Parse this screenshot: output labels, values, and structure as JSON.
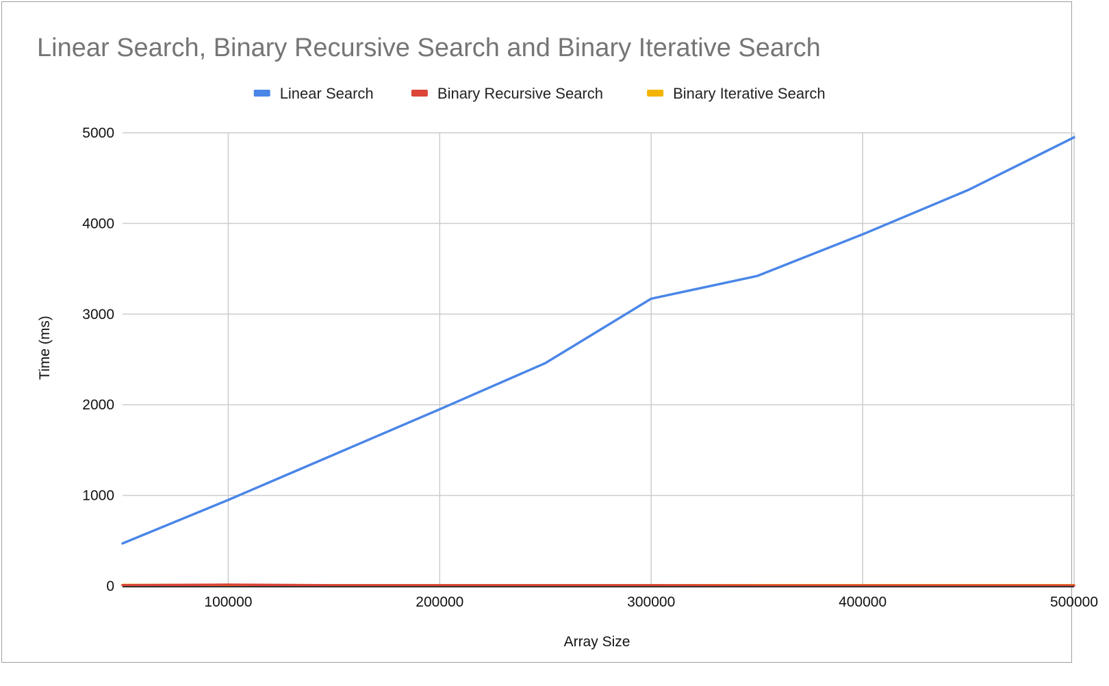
{
  "chart_data": {
    "type": "line",
    "title": "Linear Search, Binary Recursive Search and Binary Iterative Search",
    "xlabel": "Array Size",
    "ylabel": "Time (ms)",
    "xlim": [
      50000,
      500000
    ],
    "ylim": [
      0,
      5000
    ],
    "x_ticks": [
      "100000",
      "200000",
      "300000",
      "400000",
      "500000"
    ],
    "y_ticks": [
      "0",
      "1000",
      "2000",
      "3000",
      "4000",
      "5000"
    ],
    "grid": true,
    "legend_position": "top",
    "x": [
      50000,
      100000,
      150000,
      200000,
      250000,
      300000,
      350000,
      400000,
      450000,
      500000
    ],
    "series": [
      {
        "name": "Linear Search",
        "color": "#4a86e8",
        "values": [
          470,
          950,
          1450,
          1950,
          2460,
          3170,
          3420,
          3880,
          4370,
          4950
        ]
      },
      {
        "name": "Binary Recursive Search",
        "color": "#db4437",
        "values": [
          10,
          15,
          8,
          8,
          8,
          8,
          6,
          6,
          6,
          6
        ]
      },
      {
        "name": "Binary Iterative Search",
        "color": "#f4b400",
        "values": [
          12,
          10,
          10,
          10,
          10,
          10,
          10,
          10,
          10,
          10
        ]
      }
    ]
  }
}
